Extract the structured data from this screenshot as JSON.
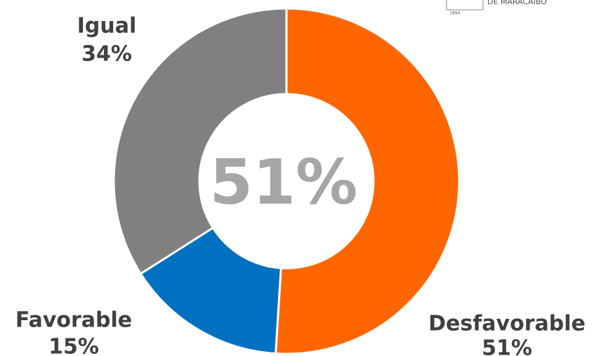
{
  "chart_data": {
    "type": "donut",
    "categories": [
      "Desfavorable",
      "Favorable",
      "Igual"
    ],
    "values": [
      51,
      15,
      34
    ],
    "value_labels": [
      "51%",
      "15%",
      "34%"
    ],
    "colors": [
      "#ff6600",
      "#0070c0",
      "#808080"
    ],
    "center_label": "51%"
  },
  "logo": {
    "text": "DE MARACAIBO",
    "year": "1894"
  }
}
